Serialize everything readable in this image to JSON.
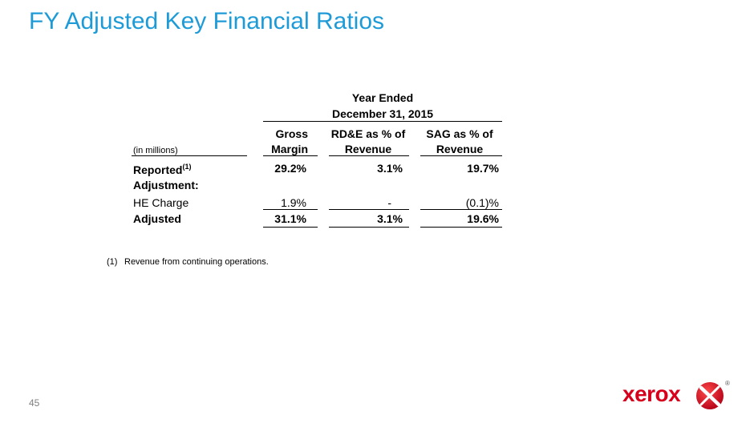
{
  "title": "FY Adjusted Key Financial Ratios",
  "table": {
    "period_line1": "Year Ended",
    "period_line2": "December 31, 2015",
    "units_label": "(in millions)",
    "columns": [
      {
        "line1": "Gross",
        "line2": "Margin"
      },
      {
        "line1": "RD&E as  % of",
        "line2": "Revenue"
      },
      {
        "line1": "SAG as  % of",
        "line2": "Revenue"
      }
    ],
    "rows": [
      {
        "label": "Reported",
        "label_sup": "(1)",
        "values": [
          "29.2%",
          "3.1%",
          "19.7%"
        ],
        "bold": true
      },
      {
        "label": "Adjustment:",
        "values": [
          "",
          "",
          ""
        ],
        "bold": true
      },
      {
        "label": "HE Charge",
        "values": [
          "1.9%",
          "-",
          "(0.1)%"
        ],
        "bold": false
      },
      {
        "label": "Adjusted",
        "values": [
          "31.1%",
          "3.1%",
          "19.6%"
        ],
        "bold": true
      }
    ]
  },
  "footnote": {
    "number": "(1)",
    "text": "Revenue from continuing operations."
  },
  "page_number": "45",
  "logo": {
    "text": "xerox",
    "registered": "®",
    "color": "#d6001c"
  },
  "colors": {
    "title": "#1e9bd7",
    "accent": "#d6001c"
  }
}
